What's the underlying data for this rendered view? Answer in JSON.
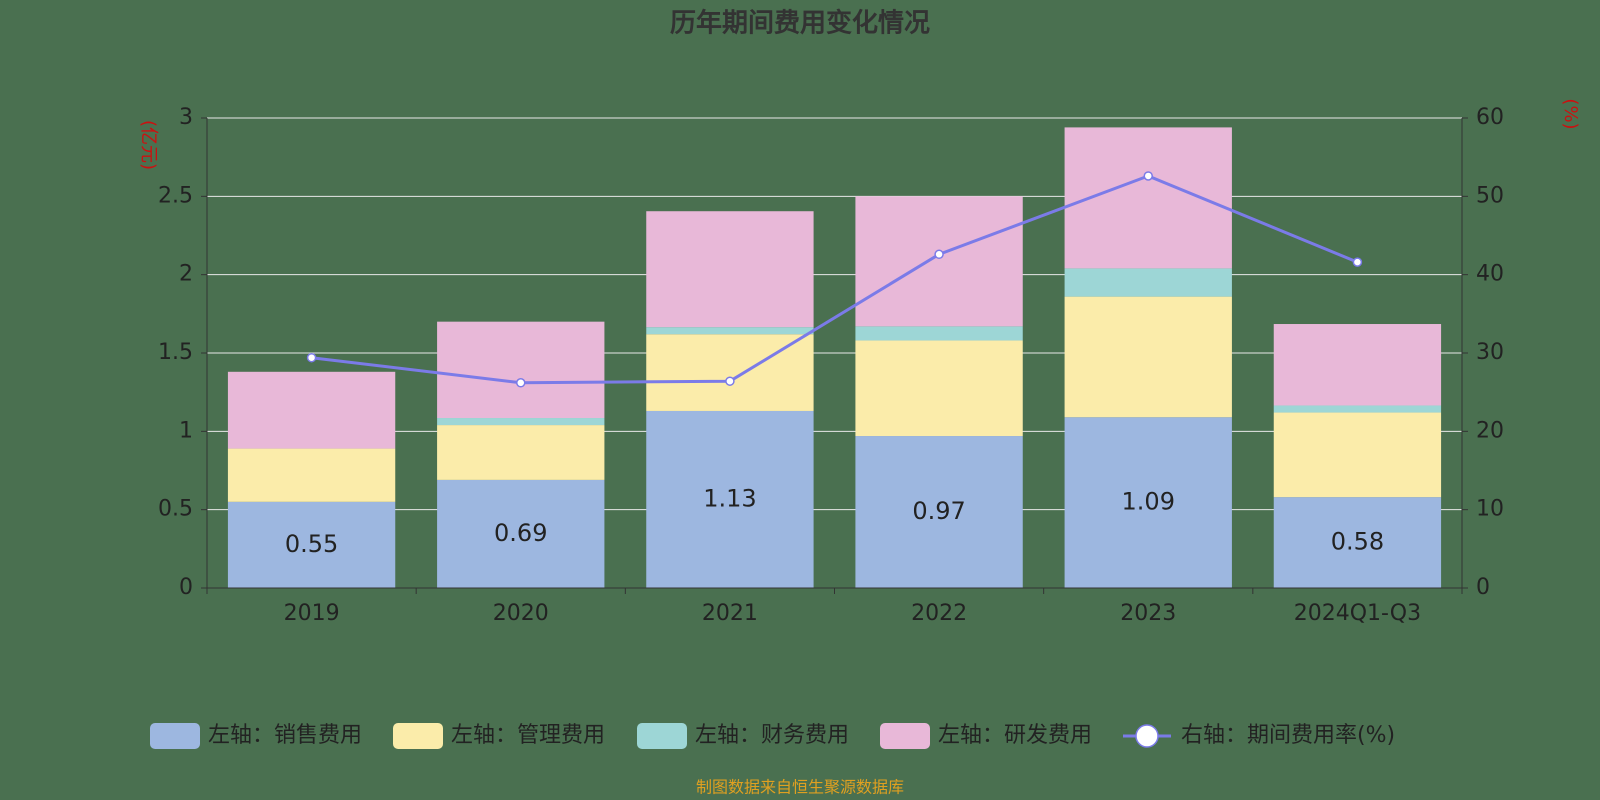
{
  "chart_data": {
    "type": "bar",
    "title": "历年期间费用变化情况",
    "y_label": "(亿元)",
    "y2_label": "(%)",
    "source": "制图数据来自恒生聚源数据库",
    "categories": [
      "2019",
      "2020",
      "2021",
      "2022",
      "2023",
      "2024Q1-Q3"
    ],
    "stacked": true,
    "grid": true,
    "legend": "bottom",
    "ylim": [
      0,
      3
    ],
    "yticks": [
      0,
      0.5,
      1,
      1.5,
      2,
      2.5,
      3
    ],
    "y2lim": [
      0,
      60
    ],
    "y2ticks": [
      0,
      10,
      20,
      30,
      40,
      50,
      60
    ],
    "series": [
      {
        "name": "左轴：销售费用",
        "color": "#9db7e0",
        "values": [
          0.55,
          0.69,
          1.13,
          0.97,
          1.09,
          0.58
        ],
        "show_labels": true
      },
      {
        "name": "左轴：管理费用",
        "color": "#fbecaa",
        "values": [
          0.34,
          0.35,
          0.49,
          0.61,
          0.77,
          0.54
        ]
      },
      {
        "name": "左轴：财务费用",
        "color": "#9dd6d6",
        "values": [
          0.0,
          0.045,
          0.045,
          0.09,
          0.18,
          0.045
        ]
      },
      {
        "name": "左轴：研发费用",
        "color": "#e8b8d8",
        "values": [
          0.49,
          0.615,
          0.74,
          0.83,
          0.9,
          0.52
        ]
      },
      {
        "name": "右轴：期间费用率(%)",
        "type": "line",
        "axis": "y2",
        "color": "#7b7be8",
        "values": [
          29.4,
          26.2,
          26.4,
          42.6,
          52.6,
          41.6
        ]
      }
    ]
  }
}
